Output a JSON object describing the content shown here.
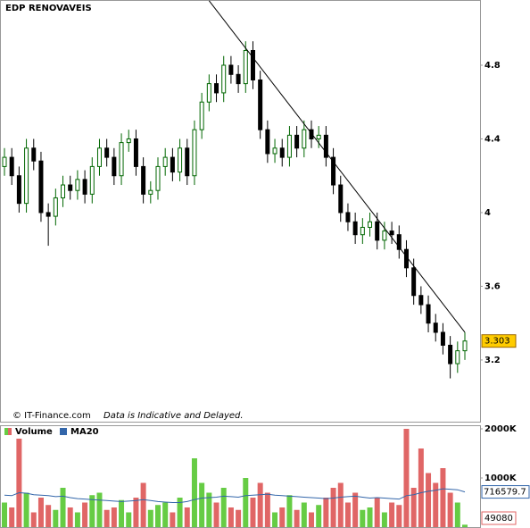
{
  "chart_data": [
    {
      "type": "candlestick",
      "title": "EDP RENOVAVEIS",
      "credit": "© IT-Finance.com",
      "note": "Data is Indicative and Delayed.",
      "ylim": [
        2.865,
        5.154
      ],
      "yticks": [
        3.2,
        3.6,
        4,
        4.4,
        4.8
      ],
      "up_color": "#006600",
      "down_color": "#000000",
      "last_label_color": "#ffcc00",
      "open": [
        4.25,
        4.3,
        4.2,
        4.05,
        4.35,
        4.28,
        4.0,
        3.98,
        4.08,
        4.15,
        4.12,
        4.18,
        4.1,
        4.25,
        4.35,
        4.3,
        4.2,
        4.38,
        4.4,
        4.25,
        4.1,
        4.12,
        4.25,
        4.3,
        4.22,
        4.35,
        4.2,
        4.45,
        4.6,
        4.7,
        4.65,
        4.8,
        4.75,
        4.7,
        4.88,
        4.72,
        4.45,
        4.32,
        4.35,
        4.3,
        4.42,
        4.35,
        4.45,
        4.4,
        4.42,
        4.3,
        4.15,
        4.0,
        3.95,
        3.88,
        3.92,
        3.95,
        3.85,
        3.9,
        3.88,
        3.8,
        3.7,
        3.55,
        3.5,
        3.4,
        3.35,
        3.28,
        3.18,
        3.25
      ],
      "high": [
        4.35,
        4.35,
        4.25,
        4.4,
        4.4,
        4.33,
        4.05,
        4.13,
        4.2,
        4.2,
        4.23,
        4.23,
        4.3,
        4.4,
        4.4,
        4.35,
        4.43,
        4.45,
        4.45,
        4.3,
        4.17,
        4.3,
        4.35,
        4.35,
        4.4,
        4.4,
        4.5,
        4.65,
        4.75,
        4.75,
        4.85,
        4.85,
        4.8,
        4.93,
        4.93,
        4.77,
        4.5,
        4.4,
        4.4,
        4.47,
        4.47,
        4.5,
        4.5,
        4.47,
        4.47,
        4.35,
        4.2,
        4.05,
        4.0,
        3.97,
        4.0,
        4.0,
        3.95,
        3.95,
        3.93,
        3.85,
        3.75,
        3.6,
        3.55,
        3.45,
        3.4,
        3.33,
        3.3,
        3.35
      ],
      "low": [
        4.2,
        4.15,
        4.0,
        4.0,
        4.23,
        3.95,
        3.82,
        3.93,
        4.03,
        4.07,
        4.07,
        4.05,
        4.05,
        4.2,
        4.25,
        4.15,
        4.15,
        4.33,
        4.2,
        4.05,
        4.05,
        4.07,
        4.2,
        4.17,
        4.17,
        4.15,
        4.15,
        4.4,
        4.55,
        4.6,
        4.6,
        4.7,
        4.65,
        4.65,
        4.67,
        4.4,
        4.27,
        4.27,
        4.25,
        4.25,
        4.3,
        4.3,
        4.35,
        4.35,
        4.25,
        4.1,
        3.95,
        3.9,
        3.83,
        3.83,
        3.87,
        3.8,
        3.8,
        3.83,
        3.75,
        3.65,
        3.5,
        3.45,
        3.35,
        3.3,
        3.23,
        3.1,
        3.13,
        3.2
      ],
      "close": [
        4.3,
        4.2,
        4.05,
        4.35,
        4.28,
        4.0,
        3.98,
        4.08,
        4.15,
        4.12,
        4.18,
        4.1,
        4.25,
        4.35,
        4.3,
        4.2,
        4.38,
        4.4,
        4.25,
        4.1,
        4.12,
        4.25,
        4.3,
        4.22,
        4.35,
        4.2,
        4.45,
        4.6,
        4.7,
        4.65,
        4.8,
        4.75,
        4.7,
        4.88,
        4.72,
        4.45,
        4.32,
        4.35,
        4.3,
        4.42,
        4.35,
        4.45,
        4.4,
        4.42,
        4.3,
        4.15,
        4.0,
        3.95,
        3.88,
        3.92,
        3.95,
        3.85,
        3.9,
        3.88,
        3.8,
        3.7,
        3.55,
        3.5,
        3.4,
        3.35,
        3.28,
        3.18,
        3.25,
        3.303
      ],
      "trendline": {
        "x": [
          28,
          63
        ],
        "y": [
          5.15,
          3.35
        ]
      }
    },
    {
      "type": "bar",
      "ylim": [
        0,
        2000000
      ],
      "yticks": [
        {
          "value": 1000000,
          "label": "1000K"
        },
        {
          "value": 2000000,
          "label": "2000K"
        }
      ],
      "series": [
        {
          "name": "Volume",
          "color": "#66cc44",
          "down_color": "#e06666",
          "values": [
            500000,
            400000,
            1800000,
            700000,
            300000,
            600000,
            450000,
            350000,
            800000,
            400000,
            300000,
            500000,
            650000,
            700000,
            350000,
            400000,
            550000,
            300000,
            600000,
            900000,
            350000,
            450000,
            500000,
            300000,
            600000,
            400000,
            1400000,
            900000,
            700000,
            500000,
            800000,
            400000,
            350000,
            1000000,
            600000,
            900000,
            700000,
            300000,
            400000,
            650000,
            350000,
            500000,
            300000,
            450000,
            600000,
            800000,
            900000,
            500000,
            700000,
            350000,
            400000,
            600000,
            300000,
            500000,
            450000,
            2000000,
            800000,
            1600000,
            1100000,
            900000,
            1200000,
            700000,
            500000,
            49080
          ]
        },
        {
          "name": "MA20",
          "color": "#3366aa",
          "values": [
            650000,
            640000,
            700000,
            690000,
            660000,
            650000,
            640000,
            620000,
            630000,
            600000,
            580000,
            570000,
            560000,
            550000,
            540000,
            530000,
            520000,
            530000,
            540000,
            560000,
            540000,
            520000,
            510000,
            500000,
            500000,
            520000,
            560000,
            590000,
            600000,
            610000,
            630000,
            620000,
            610000,
            640000,
            650000,
            660000,
            670000,
            650000,
            640000,
            630000,
            620000,
            610000,
            600000,
            590000,
            580000,
            590000,
            610000,
            620000,
            630000,
            610000,
            590000,
            600000,
            590000,
            580000,
            570000,
            640000,
            660000,
            700000,
            730000,
            750000,
            780000,
            770000,
            760000,
            716579.7
          ]
        }
      ]
    }
  ]
}
